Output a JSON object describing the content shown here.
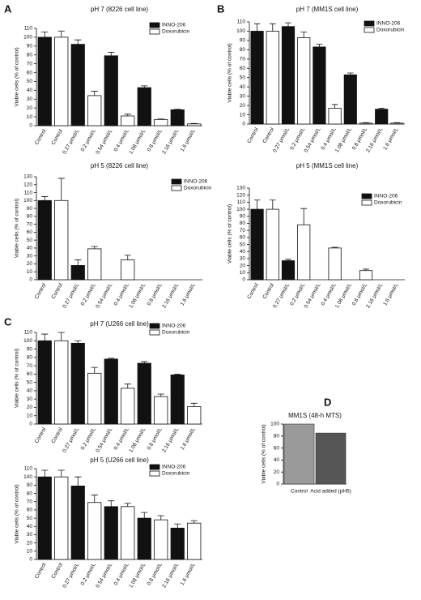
{
  "chart_data": [
    {
      "type": "bar",
      "panel": "A",
      "title": "pH 7 (8226 cell line)",
      "y_label": "Viable cells (% of control)",
      "categories": [
        "Control",
        "Control",
        "0.27 µmol/L",
        "0.2 µmol/L",
        "0.54 µmol/L",
        "0.4 µmol/L",
        "1.08 µmol/L",
        "0.8 µmol/L",
        "2.16 µmol/L",
        "1.6 µmol/L"
      ],
      "series": [
        {
          "name": "INNO-206",
          "color": "#111111",
          "values": [
            100,
            null,
            92,
            null,
            79,
            null,
            43,
            null,
            18,
            null
          ],
          "errors": [
            6,
            null,
            5,
            null,
            4,
            null,
            2,
            null,
            0.5,
            null
          ]
        },
        {
          "name": "Doxorubicin",
          "color": "#ffffff",
          "values": [
            null,
            100,
            null,
            34,
            null,
            11,
            null,
            7,
            null,
            2
          ],
          "errors": [
            null,
            7,
            null,
            5,
            null,
            2,
            null,
            0.5,
            null,
            0.5
          ]
        }
      ],
      "ylim": [
        0,
        110
      ],
      "yticks": [
        0,
        10,
        20,
        30,
        40,
        50,
        60,
        70,
        80,
        90,
        100,
        110
      ]
    },
    {
      "type": "bar",
      "title": "pH 5 (8226 cell line)",
      "y_label": "Viable cells (% of control)",
      "categories": [
        "Control",
        "Control",
        "0.27 µmol/L",
        "0.2 µmol/L",
        "0.54 µmol/L",
        "0.4 µmol/L",
        "1.08 µmol/L",
        "0.8 µmol/L",
        "2.16 µmol/L",
        "1.6 µmol/L"
      ],
      "series": [
        {
          "name": "INNO-206",
          "color": "#111111",
          "values": [
            100,
            null,
            18,
            null,
            0,
            null,
            0,
            null,
            0,
            null
          ],
          "errors": [
            5,
            null,
            7,
            null,
            null,
            null,
            null,
            null,
            null,
            null
          ]
        },
        {
          "name": "Doxorubicin",
          "color": "#ffffff",
          "values": [
            null,
            100,
            null,
            39,
            null,
            25,
            null,
            0,
            null,
            0
          ],
          "errors": [
            null,
            28,
            null,
            3,
            null,
            6,
            null,
            null,
            null,
            null
          ]
        }
      ],
      "ylim": [
        0,
        130
      ],
      "yticks": [
        0,
        10,
        20,
        30,
        40,
        50,
        60,
        70,
        80,
        90,
        100,
        110,
        120,
        130
      ]
    },
    {
      "type": "bar",
      "panel": "B",
      "title": "pH 7 (MM1S cell line)",
      "y_label": "Viable cells (% of control)",
      "categories": [
        "Control",
        "Control",
        "0.27 µmol/L",
        "0.2 µmol/L",
        "0.54 µmol/L",
        "0.4 µmol/L",
        "1.08 µmol/L",
        "0.8 µmol/L",
        "2.16 µmol/L",
        "1.6 µmol/L"
      ],
      "series": [
        {
          "name": "INNO-206",
          "color": "#111111",
          "values": [
            100,
            null,
            105,
            null,
            83,
            null,
            53,
            null,
            16,
            null
          ],
          "errors": [
            8,
            null,
            4,
            null,
            3,
            null,
            2,
            null,
            1,
            null
          ]
        },
        {
          "name": "Doxorubicin",
          "color": "#ffffff",
          "values": [
            null,
            100,
            null,
            93,
            null,
            17,
            null,
            1,
            null,
            1
          ],
          "errors": [
            null,
            8,
            null,
            6,
            null,
            4,
            null,
            0.5,
            null,
            0.5
          ]
        }
      ],
      "ylim": [
        0,
        110
      ],
      "yticks": [
        0,
        10,
        20,
        30,
        40,
        50,
        60,
        70,
        80,
        90,
        100,
        110
      ]
    },
    {
      "type": "bar",
      "title": "pH 5 (MM1S cell line)",
      "y_label": "Viable cells (% of control)",
      "categories": [
        "Control",
        "Control",
        "0.27 µmol/L",
        "0.2 µmol/L",
        "0.54 µmol/L",
        "0.4 µmol/L",
        "1.08 µmol/L",
        "0.8 µmol/L",
        "2.16 µmol/L",
        "1.6 µmol/L"
      ],
      "series": [
        {
          "name": "INNO-206",
          "color": "#111111",
          "values": [
            100,
            null,
            27,
            null,
            0,
            null,
            0,
            null,
            0,
            null
          ],
          "errors": [
            13,
            null,
            2,
            null,
            null,
            null,
            null,
            null,
            null,
            null
          ]
        },
        {
          "name": "Doxorubicin",
          "color": "#ffffff",
          "values": [
            null,
            100,
            null,
            78,
            null,
            45,
            null,
            13,
            null,
            0
          ],
          "errors": [
            null,
            13,
            null,
            23,
            null,
            1,
            null,
            2,
            null,
            null
          ]
        }
      ],
      "ylim": [
        0,
        130
      ],
      "yticks": [
        0,
        10,
        20,
        30,
        40,
        50,
        60,
        70,
        80,
        90,
        100,
        110,
        120,
        130
      ]
    },
    {
      "type": "bar",
      "panel": "C",
      "title": "pH 7 (U266 cell line)",
      "y_label": "Viable cells (% of control)",
      "categories": [
        "Control",
        "Control",
        "0.27 µmol/L",
        "0.2 µmol/L",
        "0.54 µmol/L",
        "0.4 µmol/L",
        "1.08 µmol/L",
        "0.8 µmol/L",
        "2.16 µmol/L",
        "1.6 µmol/L"
      ],
      "series": [
        {
          "name": "INNO-206",
          "color": "#111111",
          "values": [
            100,
            null,
            97,
            null,
            78,
            null,
            73,
            null,
            59,
            null
          ],
          "errors": [
            8,
            null,
            3,
            null,
            1,
            null,
            2,
            null,
            1,
            null
          ]
        },
        {
          "name": "Doxorubicin",
          "color": "#ffffff",
          "values": [
            null,
            100,
            null,
            61,
            null,
            43,
            null,
            33,
            null,
            21
          ],
          "errors": [
            null,
            10,
            null,
            7,
            null,
            5,
            null,
            3,
            null,
            4
          ]
        }
      ],
      "ylim": [
        0,
        110
      ],
      "yticks": [
        0,
        10,
        20,
        30,
        40,
        50,
        60,
        70,
        80,
        90,
        100,
        110
      ]
    },
    {
      "type": "bar",
      "title": "pH 5 (U266 cell line)",
      "y_label": "Viable cells (% of control)",
      "categories": [
        "Control",
        "Control",
        "0.27 µmol/L",
        "0.2 µmol/L",
        "0.54 µmol/L",
        "0.4 µmol/L",
        "1.08 µmol/L",
        "0.8 µmol/L",
        "2.16 µmol/L",
        "1.6 µmol/L"
      ],
      "series": [
        {
          "name": "INNO-206",
          "color": "#111111",
          "values": [
            100,
            null,
            89,
            null,
            64,
            null,
            50,
            null,
            38,
            null
          ],
          "errors": [
            8,
            null,
            11,
            null,
            7,
            null,
            7,
            null,
            5,
            null
          ]
        },
        {
          "name": "Doxorubicin",
          "color": "#ffffff",
          "values": [
            null,
            100,
            null,
            69,
            null,
            64,
            null,
            48,
            null,
            44
          ],
          "errors": [
            null,
            8,
            null,
            9,
            null,
            4,
            null,
            5,
            null,
            3
          ]
        }
      ],
      "ylim": [
        0,
        110
      ],
      "yticks": [
        0,
        10,
        20,
        30,
        40,
        50,
        60,
        70,
        80,
        90,
        100,
        110
      ]
    },
    {
      "type": "bar",
      "panel": "D",
      "title": "MM1S (48-h MTS)",
      "y_label": "Viable cells (% of control)",
      "categories": [
        "Control",
        "Acid added (pH5)"
      ],
      "values": [
        100,
        85
      ],
      "colors": [
        "#9a9a9a",
        "#555555"
      ],
      "ylim": [
        0,
        100
      ],
      "yticks": [
        0,
        20,
        40,
        60,
        80,
        100
      ]
    }
  ]
}
